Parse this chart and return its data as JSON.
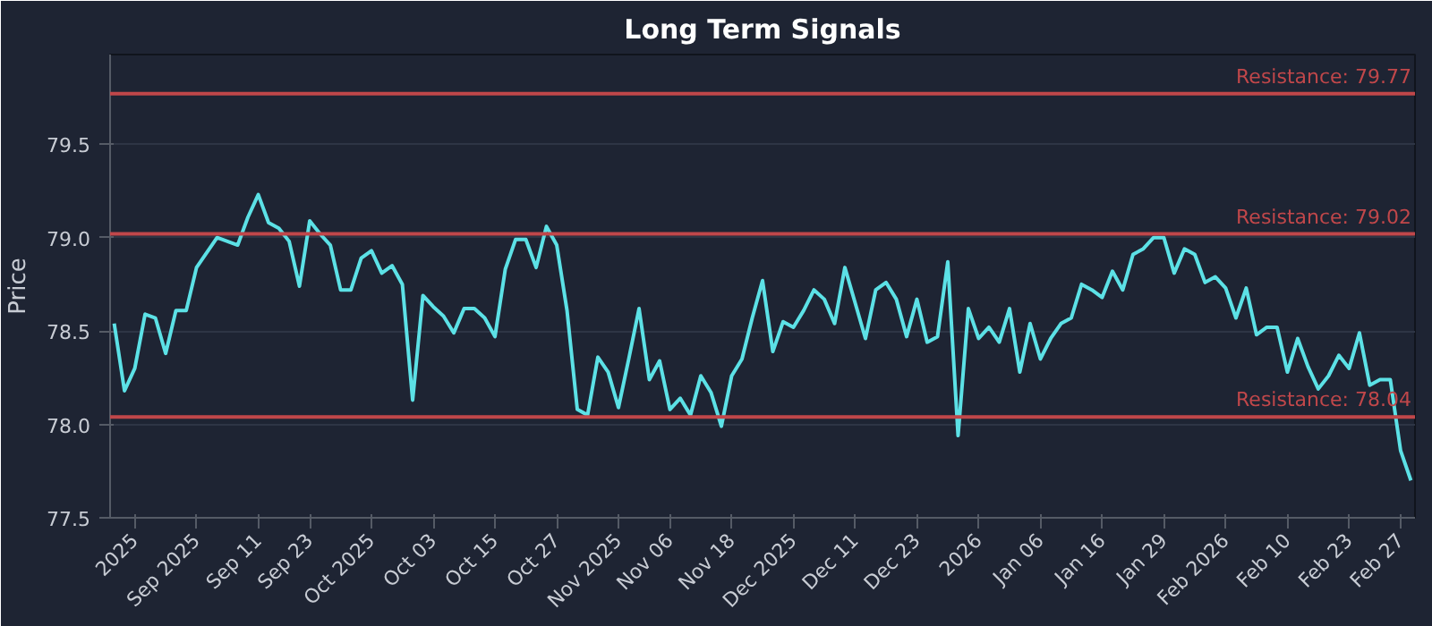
{
  "chart_data": {
    "type": "line",
    "title": "Long Term Signals",
    "ylabel": "Price",
    "categories": [
      null,
      null,
      "2025",
      null,
      null,
      null,
      null,
      null,
      "Sep 2025",
      null,
      null,
      null,
      null,
      null,
      "Sep 11",
      null,
      null,
      null,
      null,
      "Sep 23",
      null,
      null,
      null,
      null,
      null,
      "Oct 2025",
      null,
      null,
      null,
      null,
      null,
      "Oct 03",
      null,
      null,
      null,
      null,
      null,
      "Oct 15",
      null,
      null,
      null,
      null,
      null,
      "Oct 27",
      null,
      null,
      null,
      null,
      null,
      "Nov 2025",
      null,
      null,
      null,
      null,
      "Nov 06",
      null,
      null,
      null,
      null,
      null,
      "Nov 18",
      null,
      null,
      null,
      null,
      null,
      "Dec 2025",
      null,
      null,
      null,
      null,
      null,
      "Dec 11",
      null,
      null,
      null,
      null,
      null,
      "Dec 23",
      null,
      null,
      null,
      null,
      null,
      "2026",
      null,
      null,
      null,
      null,
      null,
      "Jan 06",
      null,
      null,
      null,
      null,
      null,
      "Jan 16",
      null,
      null,
      null,
      null,
      null,
      "Jan 29",
      null,
      null,
      null,
      null,
      null,
      "Feb 2026",
      null,
      null,
      null,
      null,
      null,
      "Feb 10",
      null,
      null,
      null,
      null,
      null,
      "Feb 23",
      null,
      null,
      null,
      null,
      "Feb 27",
      null
    ],
    "series": [
      {
        "color": "#5ce1e6",
        "values": [
          78.54,
          78.18,
          78.3,
          78.59,
          78.57,
          78.38,
          78.61,
          78.61,
          78.84,
          78.92,
          79.0,
          78.98,
          78.96,
          79.11,
          79.23,
          79.08,
          79.05,
          78.98,
          78.74,
          79.09,
          79.02,
          78.96,
          78.72,
          78.72,
          78.89,
          78.93,
          78.81,
          78.85,
          78.75,
          78.13,
          78.69,
          78.63,
          78.58,
          78.49,
          78.62,
          78.62,
          78.57,
          78.47,
          78.83,
          78.99,
          78.99,
          78.84,
          79.06,
          78.96,
          78.61,
          78.08,
          78.05,
          78.36,
          78.28,
          78.09,
          78.35,
          78.62,
          78.24,
          78.34,
          78.08,
          78.14,
          78.05,
          78.26,
          78.17,
          77.99,
          78.26,
          78.35,
          78.57,
          78.77,
          78.39,
          78.55,
          78.52,
          78.61,
          78.72,
          78.67,
          78.54,
          78.84,
          78.65,
          78.46,
          78.72,
          78.76,
          78.67,
          78.47,
          78.67,
          78.44,
          78.47,
          78.87,
          77.94,
          78.62,
          78.46,
          78.52,
          78.44,
          78.62,
          78.28,
          78.54,
          78.35,
          78.46,
          78.54,
          78.57,
          78.75,
          78.72,
          78.68,
          78.82,
          78.72,
          78.91,
          78.94,
          79.0,
          79.0,
          78.81,
          78.94,
          78.91,
          78.76,
          78.79,
          78.73,
          78.57,
          78.73,
          78.48,
          78.52,
          78.52,
          78.28,
          78.46,
          78.31,
          78.19,
          78.26,
          78.37,
          78.3,
          78.49,
          78.21,
          78.24,
          78.24,
          77.86,
          77.7
        ]
      }
    ],
    "ylim": [
      77.5,
      79.98
    ],
    "yticks": [
      77.5,
      {
        "value": 78,
        "label": "78.0"
      },
      78.5,
      {
        "value": 79,
        "label": "79.0"
      },
      79.5
    ],
    "grid": "y",
    "ref_lines": [
      {
        "axis": "y",
        "value": 79.77,
        "label": "Resistance: 79.77",
        "color": "#c0474a"
      },
      {
        "axis": "y",
        "value": 79.02,
        "label": "Resistance: 79.02",
        "color": "#c0474a"
      },
      {
        "axis": "y",
        "value": 78.04,
        "label": "Resistance: 78.04",
        "color": "#c0474a"
      }
    ]
  }
}
